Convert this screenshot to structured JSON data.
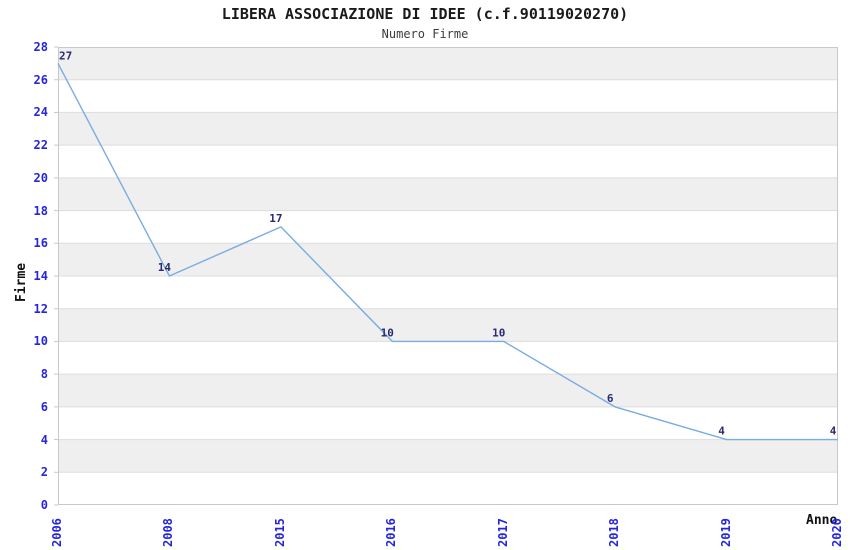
{
  "chart_data": {
    "type": "line",
    "title": "LIBERA ASSOCIAZIONE DI IDEE (c.f.90119020270)",
    "subtitle": "Numero Firme",
    "xlabel": "Anno",
    "ylabel": "Firme",
    "categories": [
      "2006",
      "2008",
      "2015",
      "2016",
      "2017",
      "2018",
      "2019",
      "2020"
    ],
    "values": [
      27,
      14,
      17,
      10,
      10,
      6,
      4,
      4
    ],
    "ylim": [
      0,
      28
    ],
    "ytick_step": 2,
    "grid": "horizontal",
    "background_stripes": "alternating 2-unit bands",
    "legend": "none",
    "colors": {
      "line": "#79ade0",
      "tick_label": "#2525dd",
      "data_label": "#2b2b70",
      "stripe": "#efefef",
      "gridline": "#dddddd",
      "border": "#c8c8c8",
      "title": "#1a1a1a",
      "subtitle": "#3c3c3c",
      "axis_label": "#111111"
    }
  }
}
